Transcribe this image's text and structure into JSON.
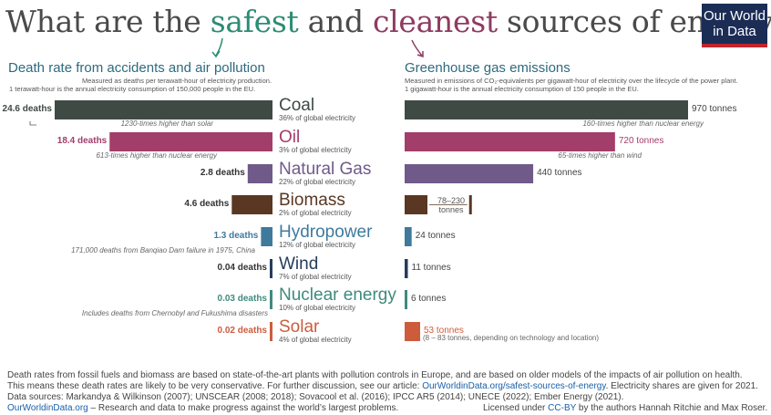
{
  "header": {
    "title_pre": "What are the ",
    "title_safe": "safest",
    "title_mid": " and ",
    "title_clean": "cleanest",
    "title_post": " sources of energy?",
    "logo_line1": "Our World",
    "logo_line2": "in Data"
  },
  "left_panel": {
    "title": "Death rate from accidents and air pollution",
    "subtitle1": "Measured as deaths per terawatt-hour of electricity production.",
    "subtitle2": "1 terawatt-hour is the annual electricity consumption of 150,000 people in the EU."
  },
  "right_panel": {
    "title": "Greenhouse gas emissions",
    "subtitle1": "Measured in emissions of CO₂-equivalents per gigawatt-hour of electricity over the lifecycle of the power plant.",
    "subtitle2": "1 gigawatt-hour is the annual electricity consumption of 150 people in the EU."
  },
  "chart_data": {
    "type": "bar",
    "categories": [
      "Coal",
      "Oil",
      "Natural Gas",
      "Biomass",
      "Hydropower",
      "Wind",
      "Nuclear energy",
      "Solar"
    ],
    "colors": [
      "#3f4a45",
      "#a33d6a",
      "#6f5a8a",
      "#5a3722",
      "#3f7a9c",
      "#253d5c",
      "#3f8a7e",
      "#cd5c3d"
    ],
    "series": [
      {
        "name": "Death rate from accidents and air pollution",
        "values": [
          24.6,
          18.4,
          2.8,
          4.6,
          1.3,
          0.04,
          0.03,
          0.02
        ],
        "labels": [
          "24.6 deaths",
          "18.4 deaths",
          "2.8 deaths",
          "4.6 deaths",
          "1.3 deaths",
          "0.04 deaths",
          "0.03 deaths",
          "0.02 deaths"
        ]
      },
      {
        "name": "Greenhouse gas emissions",
        "values": [
          970,
          720,
          440,
          230,
          24,
          11,
          6,
          53
        ],
        "range_low": [
          null,
          null,
          null,
          78,
          null,
          null,
          null,
          null
        ],
        "labels": [
          "970 tonnes",
          "720 tonnes",
          "440 tonnes",
          "78–230 tonnes",
          "24 tonnes",
          "11 tonnes",
          "6 tonnes",
          "53 tonnes"
        ]
      }
    ],
    "shares": [
      "36% of global electricity",
      "3% of global electricity",
      "22% of global electricity",
      "2% of global electricity",
      "12% of global electricity",
      "7% of global electricity",
      "10% of global electricity",
      "4% of global electricity"
    ],
    "left_notes": [
      "1230-times higher than solar",
      "613-times higher than nuclear energy",
      "",
      "",
      "171,000 deaths from Banqiao Dam failure in 1975, China",
      "",
      "Includes deaths from Chernobyl and Fukushima disasters",
      ""
    ],
    "right_notes": [
      "160-times higher than nuclear energy",
      "65-times higher than wind",
      "",
      "",
      "",
      "",
      "",
      "(8 – 83 tonnes, depending on technology and location)"
    ]
  },
  "footer": {
    "line1": "Death rates from fossil fuels and biomass are based on state-of-the-art plants with pollution controls in Europe, and are based on older models of the impacts of air pollution on health.",
    "line2_pre": "This means these death rates are likely to be very conservative. For further discussion, see our article: ",
    "line2_link": "OurWorldinData.org/safest-sources-of-energy",
    "line2_post": ". Electricity shares are given for 2021.",
    "line3": "Data sources: Markandya & Wilkinson (2007); UNSCEAR (2008; 2018); Sovacool et al. (2016); IPCC AR5 (2014); UNECE (2022); Ember Energy (2021).",
    "site": "OurWorldinData.org",
    "tagline": " – Research and data to make progress against the world’s largest problems.",
    "license_pre": "Licensed under ",
    "license_link": "CC-BY",
    "license_post": " by the authors Hannah Ritchie and Max Roser."
  }
}
